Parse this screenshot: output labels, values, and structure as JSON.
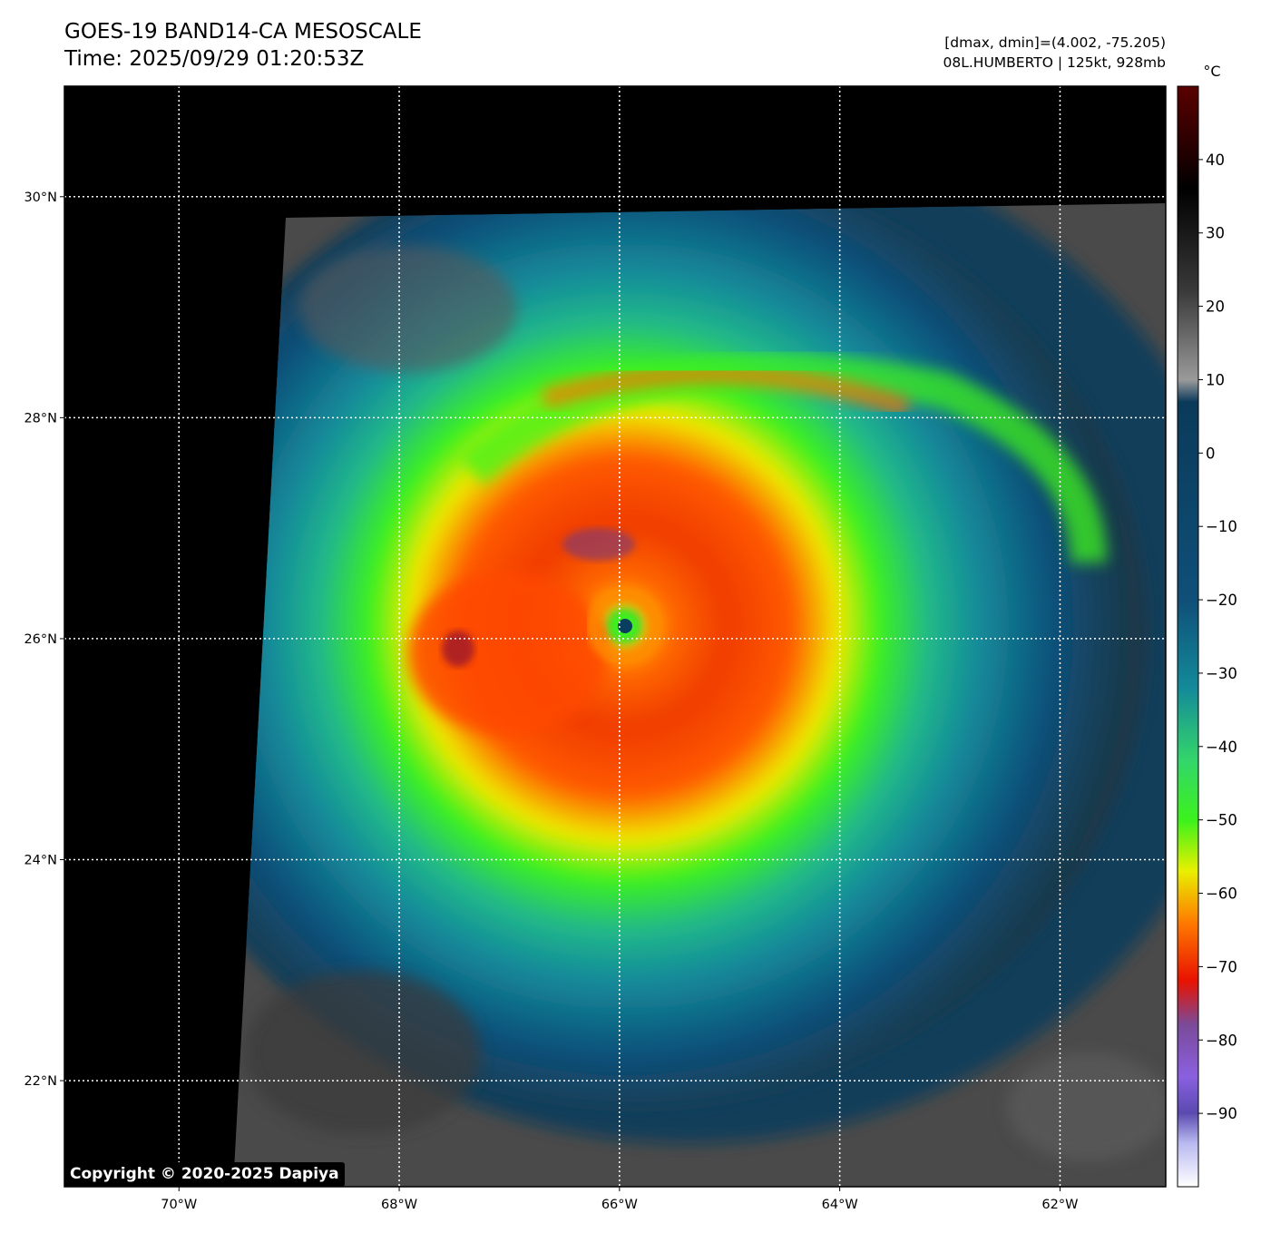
{
  "header": {
    "title_line1": "GOES-19 BAND14-CA MESOSCALE",
    "title_line2": "Time: 2025/09/29 01:20:53Z",
    "info_line1": "[dmax, dmin]=(4.002, -75.205)",
    "info_line2": "08L.HUMBERTO | 125kt, 928mb"
  },
  "map": {
    "lon_ticks": [
      {
        "value": -70,
        "label": "70°W"
      },
      {
        "value": -68,
        "label": "68°W"
      },
      {
        "value": -66,
        "label": "66°W"
      },
      {
        "value": -64,
        "label": "64°W"
      },
      {
        "value": -62,
        "label": "62°W"
      }
    ],
    "lat_ticks": [
      {
        "value": 30,
        "label": "30°N"
      },
      {
        "value": 28,
        "label": "28°N"
      },
      {
        "value": 26,
        "label": "26°N"
      },
      {
        "value": 24,
        "label": "24°N"
      },
      {
        "value": 22,
        "label": "22°N"
      }
    ],
    "lon_range": [
      -71.04,
      -61.04
    ],
    "lat_range": [
      21.04,
      31.0
    ],
    "storm_center": {
      "lon": -65.9,
      "lat": 26.08
    },
    "grid_style": "dotted white"
  },
  "colorbar": {
    "unit": "°C",
    "range": [
      -100,
      50
    ],
    "ticks": [
      40,
      30,
      20,
      10,
      0,
      -10,
      -20,
      -30,
      -40,
      -50,
      -60,
      -70,
      -80,
      -90
    ],
    "stops": [
      {
        "value": 50,
        "color": "#5a0000"
      },
      {
        "value": 42,
        "color": "#2a0000"
      },
      {
        "value": 36,
        "color": "#000000"
      },
      {
        "value": 22,
        "color": "#3a3a3a"
      },
      {
        "value": 10,
        "color": "#9a9a9a"
      },
      {
        "value": 7,
        "color": "#0a3a5a"
      },
      {
        "value": -20,
        "color": "#0f4f78"
      },
      {
        "value": -32,
        "color": "#138a9a"
      },
      {
        "value": -42,
        "color": "#33d66a"
      },
      {
        "value": -50,
        "color": "#3cf21c"
      },
      {
        "value": -57,
        "color": "#e8f000"
      },
      {
        "value": -64,
        "color": "#ff7a00"
      },
      {
        "value": -72,
        "color": "#e81200"
      },
      {
        "value": -78,
        "color": "#7a4a9a"
      },
      {
        "value": -85,
        "color": "#8a60e0"
      },
      {
        "value": -90,
        "color": "#5a4ab0"
      },
      {
        "value": -94,
        "color": "#b8b8f0"
      },
      {
        "value": -100,
        "color": "#ffffff"
      }
    ]
  },
  "copyright": "Copyright © 2020-2025 Dapiya"
}
